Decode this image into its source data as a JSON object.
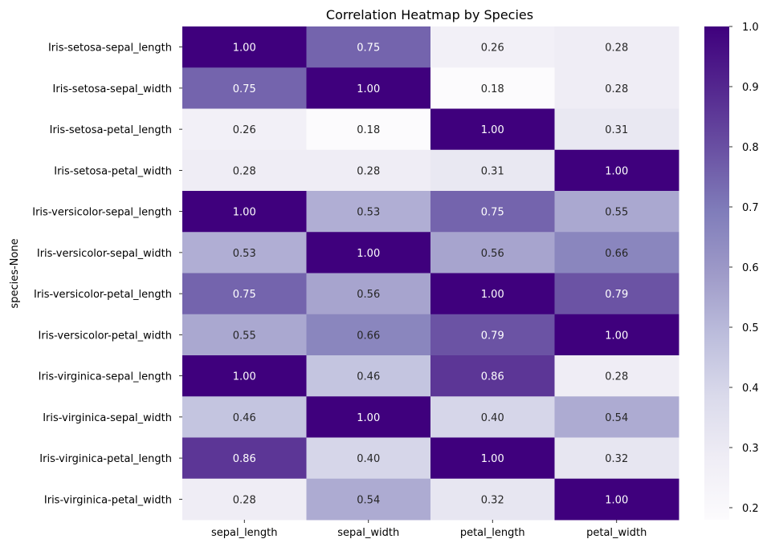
{
  "chart_data": {
    "type": "heatmap",
    "title": "Correlation Heatmap by Species",
    "xlabel": "",
    "ylabel": "species-None",
    "x_categories": [
      "sepal_length",
      "sepal_width",
      "petal_length",
      "petal_width"
    ],
    "y_categories": [
      "Iris-setosa-sepal_length",
      "Iris-setosa-sepal_width",
      "Iris-setosa-petal_length",
      "Iris-setosa-petal_width",
      "Iris-versicolor-sepal_length",
      "Iris-versicolor-sepal_width",
      "Iris-versicolor-petal_length",
      "Iris-versicolor-petal_width",
      "Iris-virginica-sepal_length",
      "Iris-virginica-sepal_width",
      "Iris-virginica-petal_length",
      "Iris-virginica-petal_width"
    ],
    "values": [
      [
        1.0,
        0.75,
        0.26,
        0.28
      ],
      [
        0.75,
        1.0,
        0.18,
        0.28
      ],
      [
        0.26,
        0.18,
        1.0,
        0.31
      ],
      [
        0.28,
        0.28,
        0.31,
        1.0
      ],
      [
        1.0,
        0.53,
        0.75,
        0.55
      ],
      [
        0.53,
        1.0,
        0.56,
        0.66
      ],
      [
        0.75,
        0.56,
        1.0,
        0.79
      ],
      [
        0.55,
        0.66,
        0.79,
        1.0
      ],
      [
        1.0,
        0.46,
        0.86,
        0.28
      ],
      [
        0.46,
        1.0,
        0.4,
        0.54
      ],
      [
        0.86,
        0.4,
        1.0,
        0.32
      ],
      [
        0.28,
        0.54,
        0.32,
        1.0
      ]
    ],
    "value_format": "0.00",
    "colormap": "Purples",
    "color_range": [
      0.18,
      1.0
    ],
    "colorbar": {
      "ticks": [
        0.2,
        0.3,
        0.4,
        0.5,
        0.6,
        0.7,
        0.8,
        0.9,
        1.0
      ],
      "tick_labels": [
        "0.2",
        "0.3",
        "0.4",
        "0.5",
        "0.6",
        "0.7",
        "0.8",
        "0.9",
        "1.0"
      ]
    }
  }
}
